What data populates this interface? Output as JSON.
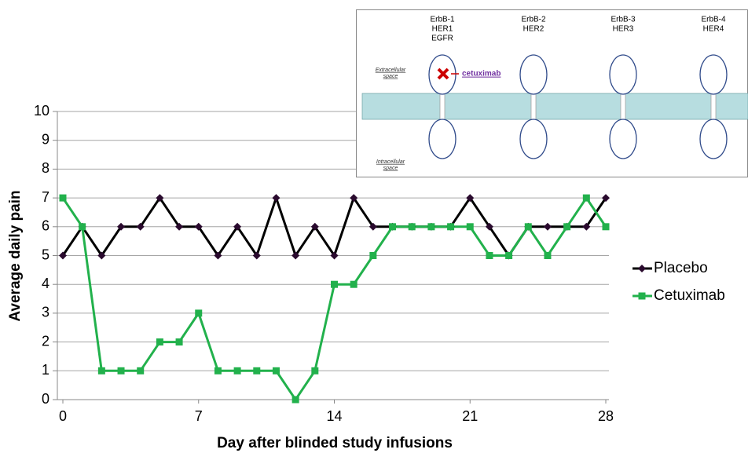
{
  "chart_data": {
    "type": "line",
    "x_label": "Day after blinded study infusions",
    "y_label": "Average daily pain",
    "x": [
      0,
      1,
      2,
      3,
      4,
      5,
      6,
      7,
      8,
      9,
      10,
      11,
      12,
      13,
      14,
      15,
      16,
      17,
      18,
      19,
      20,
      21,
      22,
      23,
      24,
      25,
      26,
      27,
      28
    ],
    "series": [
      {
        "name": "Placebo",
        "color": "#000000",
        "marker_color": "#2a0a2e",
        "marker": "diamond",
        "values": [
          5,
          6,
          5,
          6,
          6,
          7,
          6,
          6,
          5,
          6,
          5,
          7,
          5,
          6,
          5,
          7,
          6,
          6,
          6,
          6,
          6,
          7,
          6,
          5,
          6,
          6,
          6,
          6,
          7
        ]
      },
      {
        "name": "Cetuximab",
        "color": "#22b14c",
        "marker_color": "#22b14c",
        "marker": "square",
        "values": [
          7,
          6,
          1,
          1,
          1,
          2,
          2,
          3,
          1,
          1,
          1,
          1,
          0,
          1,
          4,
          4,
          5,
          6,
          6,
          6,
          6,
          6,
          5,
          5,
          6,
          5,
          6,
          7,
          6
        ]
      }
    ],
    "xlim": [
      0,
      28
    ],
    "xticks": [
      0,
      7,
      14,
      21,
      28
    ],
    "ylim": [
      0,
      10
    ],
    "yticks": [
      0,
      1,
      2,
      3,
      4,
      5,
      6,
      7,
      8,
      9,
      10
    ],
    "grid": true,
    "legend": "right"
  },
  "diagram": {
    "receptors": [
      {
        "lines": [
          "ErbB-1",
          "HER1",
          "EGFR"
        ]
      },
      {
        "lines": [
          "ErbB-2",
          "HER2"
        ]
      },
      {
        "lines": [
          "ErbB-3",
          "HER3"
        ]
      },
      {
        "lines": [
          "ErbB-4",
          "HER4"
        ]
      }
    ],
    "extracellular": [
      "Extracellular",
      "space"
    ],
    "intracellular": [
      "Intracellular",
      "space"
    ],
    "drug": "cetuximab"
  }
}
